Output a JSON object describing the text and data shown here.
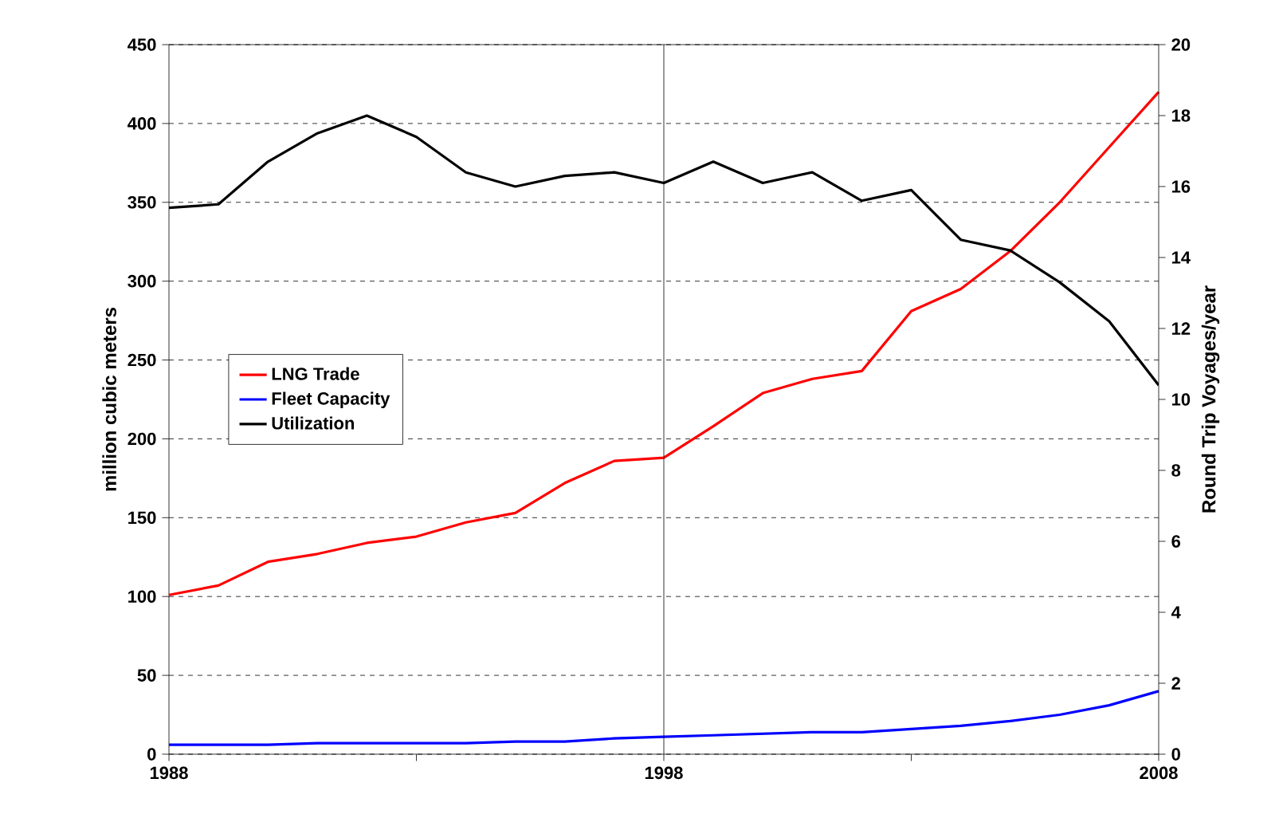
{
  "chart_data": {
    "type": "line",
    "ylabel": "million cubic meters",
    "y2label": "Round Trip Voyages/year",
    "x": [
      1988,
      1989,
      1990,
      1991,
      1992,
      1993,
      1994,
      1995,
      1996,
      1997,
      1998,
      1999,
      2000,
      2001,
      2002,
      2003,
      2004,
      2005,
      2006,
      2007,
      2008
    ],
    "series": [
      {
        "name": "LNG Trade",
        "color": "#ff0000",
        "values": [
          101,
          107,
          122,
          127,
          134,
          138,
          147,
          153,
          172,
          186,
          188,
          208,
          229,
          238,
          243,
          281,
          295,
          319,
          350,
          385,
          420
        ]
      },
      {
        "name": "Fleet Capacity",
        "color": "#0000ff",
        "values": [
          6,
          6,
          6,
          7,
          7,
          7,
          7,
          8,
          8,
          10,
          11,
          12,
          13,
          14,
          14,
          16,
          18,
          21,
          25,
          31,
          40
        ]
      },
      {
        "name": "Utilization",
        "color": "#000000",
        "axis": "y2",
        "values": [
          15.4,
          15.5,
          16.7,
          17.5,
          18.0,
          17.4,
          16.4,
          16.0,
          16.3,
          16.4,
          16.1,
          16.7,
          16.1,
          16.4,
          15.6,
          15.9,
          14.5,
          14.2,
          13.3,
          12.2,
          10.4
        ]
      }
    ],
    "xlim": [
      1988,
      2008
    ],
    "xticks": [
      1988,
      {
        "value": 1993,
        "label": null
      },
      1998,
      {
        "value": 2003,
        "label": null
      },
      2008
    ],
    "ylim": [
      0,
      450
    ],
    "yticks": [
      0,
      50,
      100,
      150,
      200,
      250,
      300,
      350,
      400,
      450
    ],
    "y2lim": [
      0,
      20
    ],
    "y2ticks": [
      0,
      2,
      4,
      6,
      8,
      10,
      12,
      14,
      16,
      18,
      20
    ],
    "ref_lines": [
      {
        "axis": "x",
        "value": 1998,
        "color": "#000000"
      }
    ],
    "grid": "y",
    "legend": "left",
    "marker": "none",
    "line_style": "solid"
  }
}
